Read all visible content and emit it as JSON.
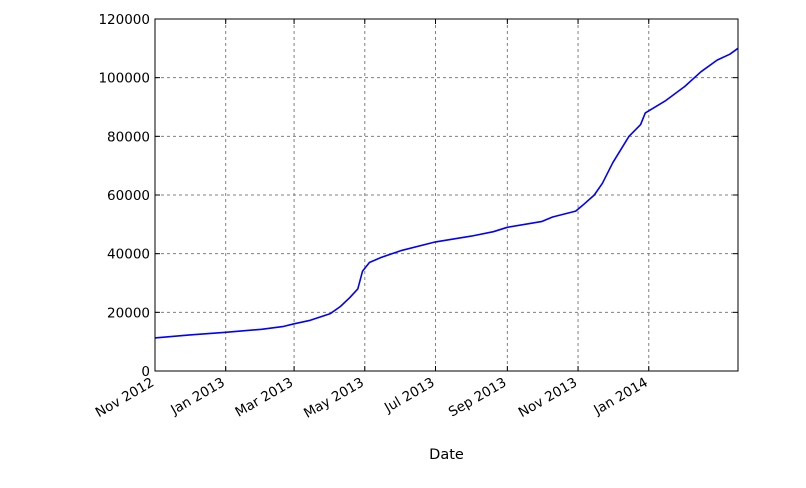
{
  "chart_data": {
    "type": "line",
    "title": "",
    "xlabel": "Date",
    "ylabel": "",
    "xlim": [
      "2012-11-01",
      "2014-03-19"
    ],
    "ylim": [
      0,
      120000
    ],
    "grid": true,
    "x_ticks": [
      {
        "date": "2012-11-01",
        "label": "Nov 2012"
      },
      {
        "date": "2013-01-01",
        "label": "Jan 2013"
      },
      {
        "date": "2013-03-01",
        "label": "Mar 2013"
      },
      {
        "date": "2013-05-01",
        "label": "May 2013"
      },
      {
        "date": "2013-07-01",
        "label": "Jul 2013"
      },
      {
        "date": "2013-09-01",
        "label": "Sep 2013"
      },
      {
        "date": "2013-11-01",
        "label": "Nov 2013"
      },
      {
        "date": "2014-01-01",
        "label": "Jan 2014"
      }
    ],
    "y_ticks": [
      {
        "value": 0,
        "label": "0"
      },
      {
        "value": 20000,
        "label": "20000"
      },
      {
        "value": 40000,
        "label": "40000"
      },
      {
        "value": 60000,
        "label": "60000"
      },
      {
        "value": 80000,
        "label": "80000"
      },
      {
        "value": 100000,
        "label": "100000"
      },
      {
        "value": 120000,
        "label": "120000"
      }
    ],
    "series": [
      {
        "color": "#0000ff",
        "points": [
          [
            "2012-11-01",
            11300
          ],
          [
            "2012-12-01",
            12300
          ],
          [
            "2013-01-01",
            13200
          ],
          [
            "2013-02-01",
            14200
          ],
          [
            "2013-02-20",
            15200
          ],
          [
            "2013-03-01",
            16100
          ],
          [
            "2013-03-15",
            17300
          ],
          [
            "2013-04-01",
            19500
          ],
          [
            "2013-04-10",
            22000
          ],
          [
            "2013-04-18",
            25000
          ],
          [
            "2013-04-25",
            28000
          ],
          [
            "2013-04-29",
            34000
          ],
          [
            "2013-05-05",
            37000
          ],
          [
            "2013-05-15",
            38700
          ],
          [
            "2013-06-01",
            41000
          ],
          [
            "2013-07-01",
            44000
          ],
          [
            "2013-08-01",
            46000
          ],
          [
            "2013-08-20",
            47500
          ],
          [
            "2013-09-01",
            49000
          ],
          [
            "2013-10-01",
            51000
          ],
          [
            "2013-10-10",
            52500
          ],
          [
            "2013-10-30",
            54500
          ],
          [
            "2013-11-05",
            56500
          ],
          [
            "2013-11-15",
            60000
          ],
          [
            "2013-11-22",
            64000
          ],
          [
            "2013-12-01",
            71000
          ],
          [
            "2013-12-15",
            80000
          ],
          [
            "2013-12-25",
            84000
          ],
          [
            "2013-12-29",
            88000
          ],
          [
            "2014-01-15",
            92000
          ],
          [
            "2014-02-01",
            97000
          ],
          [
            "2014-02-15",
            102000
          ],
          [
            "2014-03-01",
            106000
          ],
          [
            "2014-03-12",
            108000
          ],
          [
            "2014-03-19",
            110000
          ]
        ]
      }
    ]
  }
}
